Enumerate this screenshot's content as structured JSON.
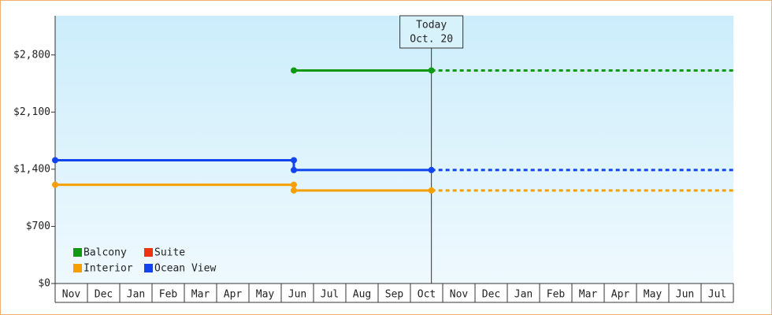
{
  "chart_data": {
    "type": "line",
    "categories": [
      "Nov",
      "Dec",
      "Jan",
      "Feb",
      "Mar",
      "Apr",
      "May",
      "Jun",
      "Jul",
      "Aug",
      "Sep",
      "Oct",
      "Nov",
      "Dec",
      "Jan",
      "Feb",
      "Mar",
      "Apr",
      "May",
      "Jun",
      "Jul"
    ],
    "xlim": [
      0,
      21
    ],
    "ylim": [
      0,
      3280
    ],
    "yticks": [
      {
        "value": 0,
        "label": "$0"
      },
      {
        "value": 700,
        "label": "$700"
      },
      {
        "value": 1400,
        "label": "$1,400"
      },
      {
        "value": 2100,
        "label": "$2,100"
      },
      {
        "value": 2800,
        "label": "$2,800"
      }
    ],
    "today": {
      "x": 11.65,
      "label": [
        "Today",
        "Oct. 20"
      ]
    },
    "series": [
      {
        "name": "Balcony",
        "color": "#119911",
        "x": [
          7.39,
          11.65,
          21
        ],
        "values": [
          2610,
          2610,
          2610
        ]
      },
      {
        "name": "Suite",
        "color": "#ee3311",
        "x": [],
        "values": []
      },
      {
        "name": "Interior",
        "color": "#f5a000",
        "x": [
          0,
          7.39,
          7.39,
          11.65,
          21
        ],
        "values": [
          1210,
          1210,
          1140,
          1140,
          1140
        ]
      },
      {
        "name": "Ocean View",
        "color": "#1144ee",
        "x": [
          0,
          7.39,
          7.39,
          11.65,
          21
        ],
        "values": [
          1510,
          1510,
          1390,
          1390,
          1390
        ]
      }
    ]
  }
}
